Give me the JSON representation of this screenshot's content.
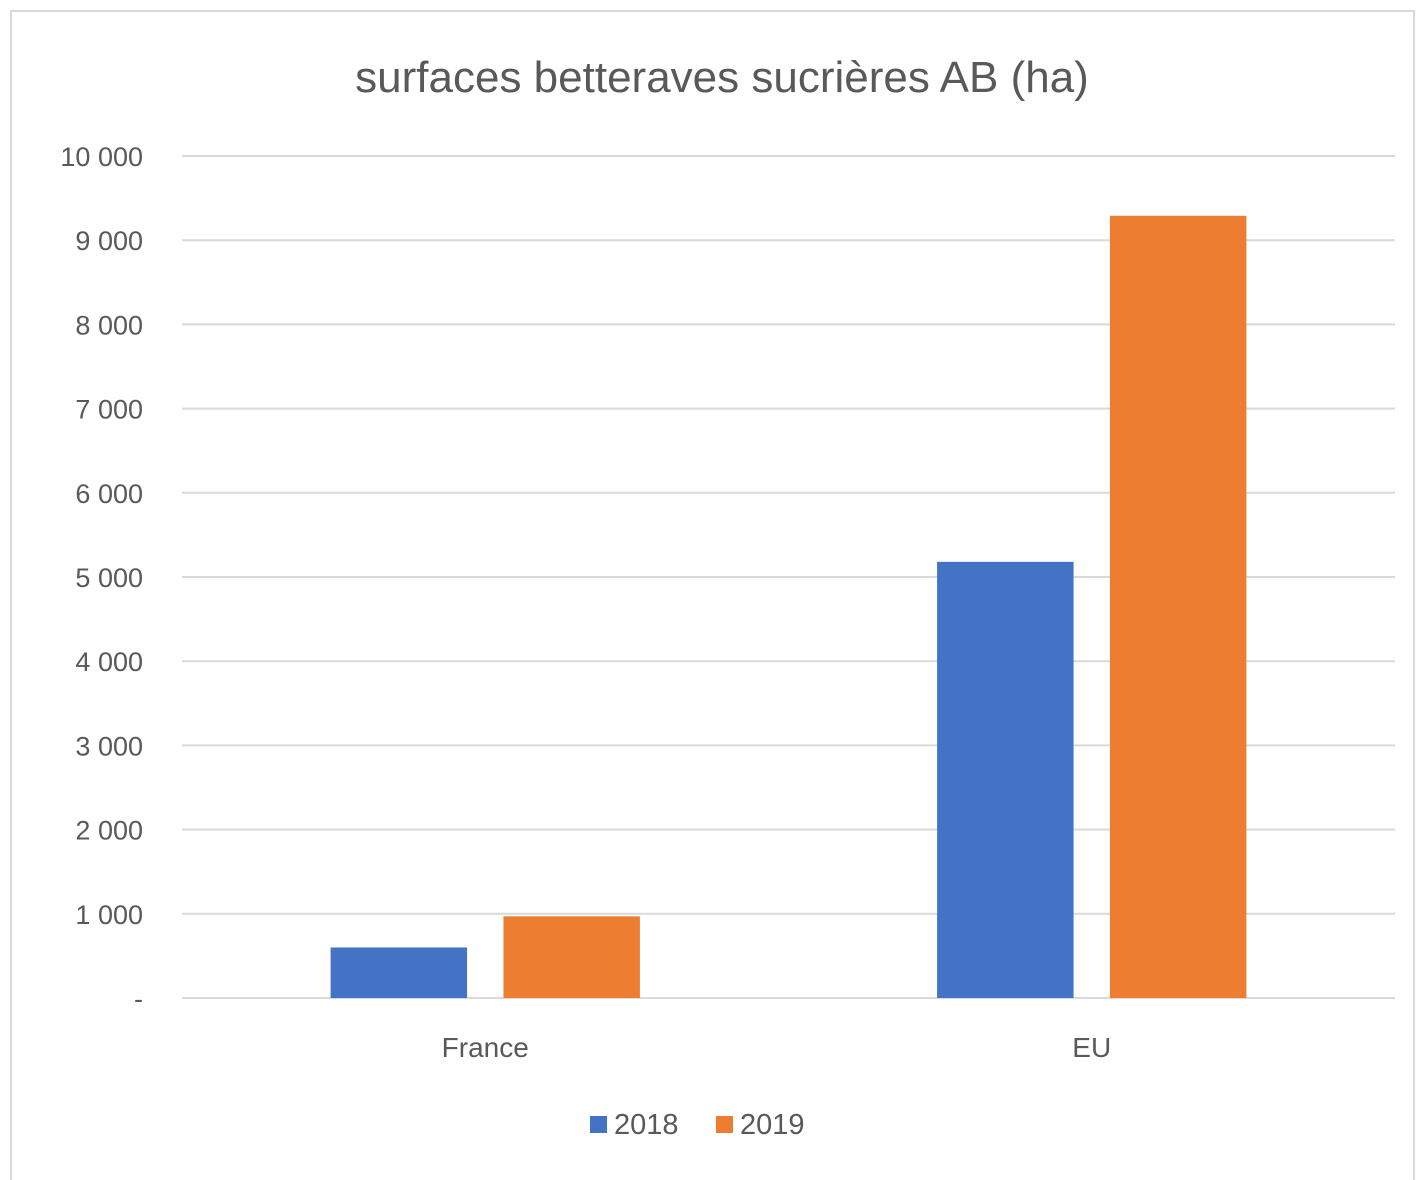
{
  "chart_data": {
    "type": "bar",
    "title": "surfaces betteraves sucrières AB (ha)",
    "xlabel": "",
    "ylabel": "",
    "categories": [
      "France",
      "EU"
    ],
    "series": [
      {
        "name": "2018",
        "color": "#4472c4",
        "values": [
          600,
          5180
        ]
      },
      {
        "name": "2019",
        "color": "#ed7d31",
        "values": [
          970,
          9290
        ]
      }
    ],
    "ylim": [
      0,
      10000
    ],
    "y_ticks": [
      {
        "value": 0,
        "label": "-"
      },
      {
        "value": 1000,
        "label": "1 000"
      },
      {
        "value": 2000,
        "label": "2 000"
      },
      {
        "value": 3000,
        "label": "3 000"
      },
      {
        "value": 4000,
        "label": "4 000"
      },
      {
        "value": 5000,
        "label": "5 000"
      },
      {
        "value": 6000,
        "label": "6 000"
      },
      {
        "value": 7000,
        "label": "7 000"
      },
      {
        "value": 8000,
        "label": "8 000"
      },
      {
        "value": 9000,
        "label": "9 000"
      },
      {
        "value": 10000,
        "label": "10 000"
      }
    ],
    "grid": true,
    "legend_position": "bottom"
  }
}
